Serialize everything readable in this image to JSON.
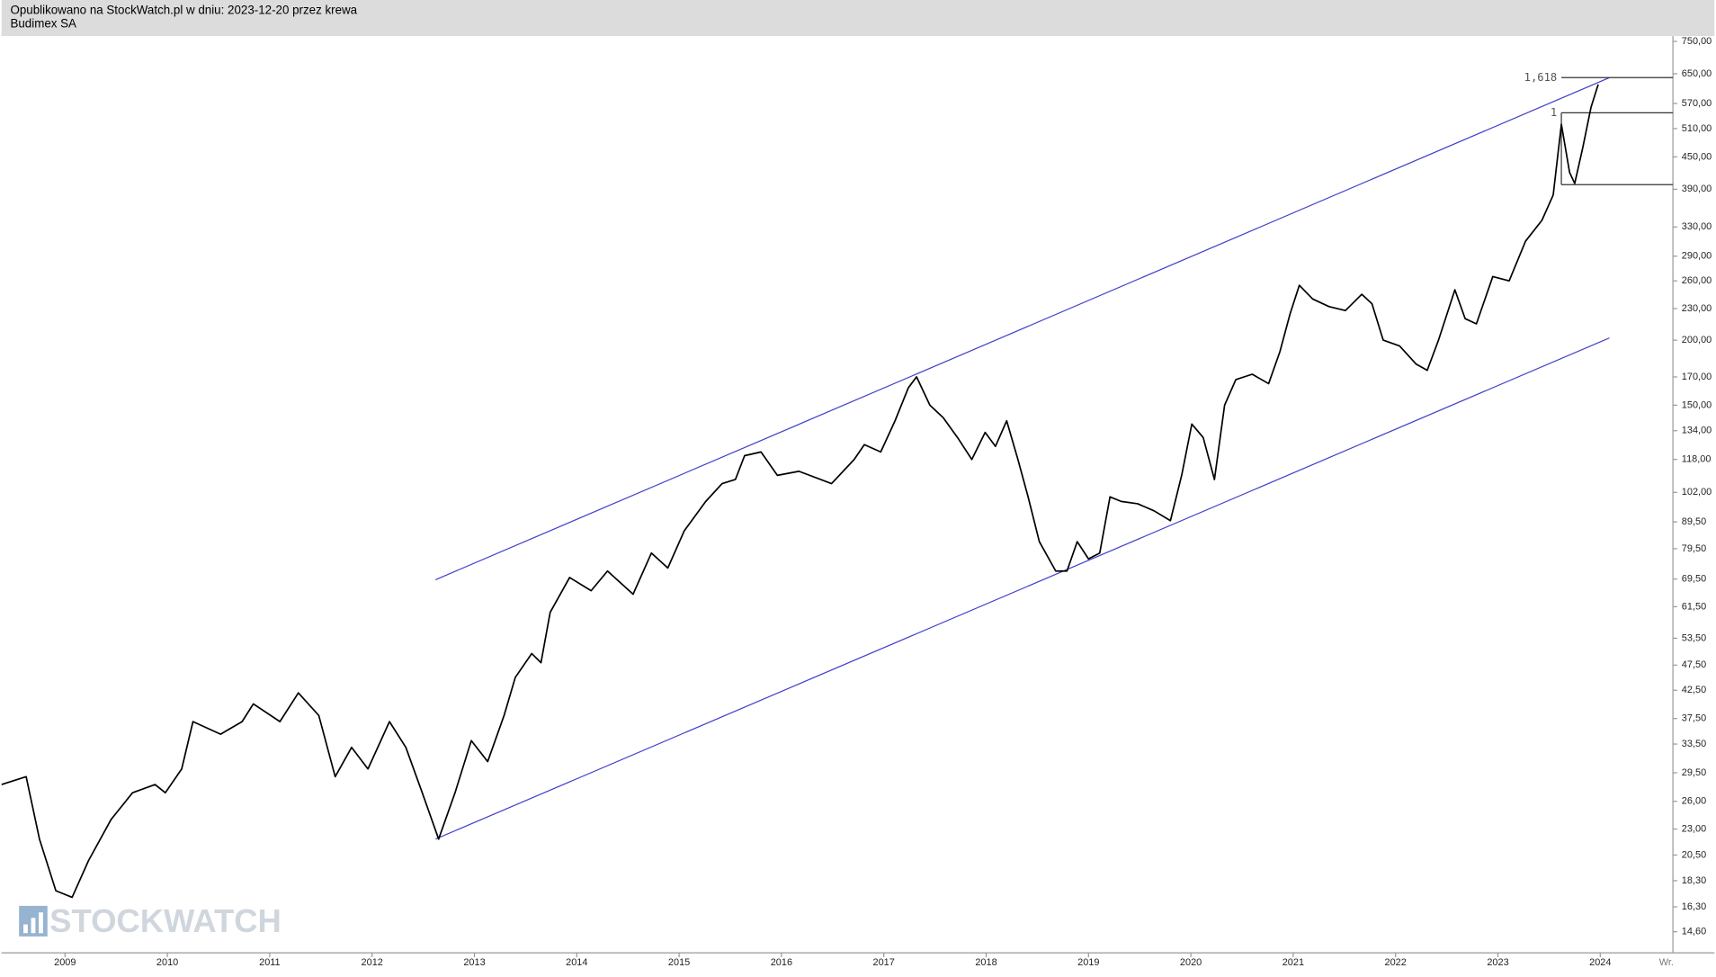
{
  "header": {
    "line1": "Opublikowano na StockWatch.pl w dniu: 2023-12-20 przez krewa",
    "line2": "Budimex SA"
  },
  "watermark": "STOCKWATCH",
  "chart_data": {
    "type": "line",
    "log_scale": true,
    "grid": false,
    "x_axis_end_label": "Wr.",
    "xlim": [
      2008.38,
      2024.71
    ],
    "xticks": [
      2009,
      2010,
      2011,
      2012,
      2013,
      2014,
      2015,
      2016,
      2017,
      2018,
      2019,
      2020,
      2021,
      2022,
      2023,
      2024
    ],
    "ylim": [
      13.3,
      768
    ],
    "yticks": [
      {
        "value": 14.6,
        "label": "14,60"
      },
      {
        "value": 16.3,
        "label": "16,30"
      },
      {
        "value": 18.3,
        "label": "18,30"
      },
      {
        "value": 20.5,
        "label": "20,50"
      },
      {
        "value": 23,
        "label": "23,00"
      },
      {
        "value": 26,
        "label": "26,00"
      },
      {
        "value": 29.5,
        "label": "29,50"
      },
      {
        "value": 33.5,
        "label": "33,50"
      },
      {
        "value": 37.5,
        "label": "37,50"
      },
      {
        "value": 42.5,
        "label": "42,50"
      },
      {
        "value": 47.5,
        "label": "47,50"
      },
      {
        "value": 53.5,
        "label": "53,50"
      },
      {
        "value": 61.5,
        "label": "61,50"
      },
      {
        "value": 69.5,
        "label": "69,50"
      },
      {
        "value": 79.5,
        "label": "79,50"
      },
      {
        "value": 89.5,
        "label": "89,50"
      },
      {
        "value": 102,
        "label": "102,00"
      },
      {
        "value": 118,
        "label": "118,00"
      },
      {
        "value": 134,
        "label": "134,00"
      },
      {
        "value": 150,
        "label": "150,00"
      },
      {
        "value": 170,
        "label": "170,00"
      },
      {
        "value": 200,
        "label": "200,00"
      },
      {
        "value": 230,
        "label": "230,00"
      },
      {
        "value": 260,
        "label": "260,00"
      },
      {
        "value": 290,
        "label": "290,00"
      },
      {
        "value": 330,
        "label": "330,00"
      },
      {
        "value": 390,
        "label": "390,00"
      },
      {
        "value": 450,
        "label": "450,00"
      },
      {
        "value": 510,
        "label": "510,00"
      },
      {
        "value": 570,
        "label": "570,00"
      },
      {
        "value": 650,
        "label": "650,00"
      },
      {
        "value": 750,
        "label": "750,00"
      }
    ],
    "x": [
      2008.38,
      2008.62,
      2008.75,
      2008.91,
      2009.07,
      2009.23,
      2009.45,
      2009.66,
      2009.88,
      2009.98,
      2010.14,
      2010.25,
      2010.52,
      2010.73,
      2010.84,
      2011.1,
      2011.28,
      2011.48,
      2011.64,
      2011.8,
      2011.96,
      2012.17,
      2012.33,
      2012.49,
      2012.65,
      2012.81,
      2012.97,
      2013.13,
      2013.29,
      2013.4,
      2013.56,
      2013.65,
      2013.74,
      2013.93,
      2014.14,
      2014.3,
      2014.55,
      2014.73,
      2014.89,
      2015.05,
      2015.26,
      2015.42,
      2015.55,
      2015.64,
      2015.8,
      2015.96,
      2016.17,
      2016.49,
      2016.71,
      2016.81,
      2016.97,
      2017.11,
      2017.24,
      2017.32,
      2017.45,
      2017.58,
      2017.72,
      2017.86,
      2017.99,
      2018.09,
      2018.2,
      2018.31,
      2018.41,
      2018.52,
      2018.68,
      2018.79,
      2018.89,
      2019.0,
      2019.11,
      2019.21,
      2019.32,
      2019.48,
      2019.64,
      2019.8,
      2019.91,
      2020.01,
      2020.12,
      2020.23,
      2020.33,
      2020.44,
      2020.6,
      2020.76,
      2020.87,
      2020.97,
      2021.06,
      2021.19,
      2021.35,
      2021.51,
      2021.67,
      2021.77,
      2021.88,
      2022.04,
      2022.2,
      2022.31,
      2022.42,
      2022.58,
      2022.68,
      2022.79,
      2022.95,
      2023.11,
      2023.27,
      2023.43,
      2023.54,
      2023.62,
      2023.7,
      2023.75,
      2023.83,
      2023.91,
      2023.98
    ],
    "series": [
      {
        "name": "Budimex SA",
        "color": "#000000",
        "values": [
          28,
          29,
          22,
          17.5,
          17,
          20,
          24,
          27,
          28,
          27,
          30,
          37,
          35,
          37,
          40,
          37,
          42,
          38,
          29,
          33,
          30,
          37,
          33,
          27,
          22,
          27,
          34,
          31,
          38,
          45,
          50,
          48,
          60,
          70,
          66,
          72,
          65,
          78,
          73,
          86,
          98,
          106,
          108,
          120,
          122,
          110,
          112,
          106,
          118,
          126,
          122,
          140,
          162,
          170,
          150,
          142,
          130,
          118,
          133,
          125,
          140,
          118,
          100,
          82,
          72,
          72,
          82,
          76,
          78,
          100,
          98,
          97,
          94,
          90,
          110,
          138,
          130,
          108,
          150,
          168,
          172,
          165,
          190,
          225,
          255,
          240,
          232,
          228,
          245,
          235,
          200,
          195,
          180,
          175,
          200,
          250,
          220,
          215,
          265,
          260,
          310,
          340,
          380,
          520,
          420,
          400,
          470,
          560,
          620
        ]
      }
    ],
    "trendlines": [
      {
        "color": "#4040cc",
        "x": [
          2012.62,
          2024.09
        ],
        "values": [
          69.3,
          639
        ]
      },
      {
        "color": "#4040cc",
        "x": [
          2012.62,
          2024.09
        ],
        "values": [
          22,
          202
        ]
      }
    ],
    "fib_start_x": 2023.62,
    "fib_levels": [
      {
        "label": "1,618",
        "value": 639
      },
      {
        "label": "1",
        "value": 547
      },
      {
        "value": 398
      }
    ]
  }
}
